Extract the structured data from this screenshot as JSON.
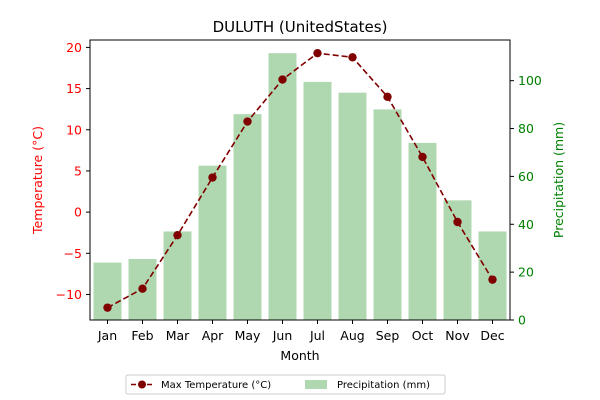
{
  "chart_data": {
    "type": "bar+line",
    "title": "DULUTH (UnitedStates)",
    "xlabel": "Month",
    "ylabel_left": "Temperature (°C)",
    "ylabel_right": "Precipitation (mm)",
    "categories": [
      "Jan",
      "Feb",
      "Mar",
      "Apr",
      "May",
      "Jun",
      "Jul",
      "Aug",
      "Sep",
      "Oct",
      "Nov",
      "Dec"
    ],
    "left_axis": {
      "ylim": [
        -13.1,
        20.9
      ],
      "ticks": [
        -10,
        -5,
        0,
        5,
        10,
        15,
        20
      ],
      "color": "#ff0000"
    },
    "right_axis": {
      "ylim": [
        0,
        117
      ],
      "ticks": [
        0,
        20,
        40,
        60,
        80,
        100
      ],
      "color": "#008000"
    },
    "series": [
      {
        "name": "Max Temperature (°C)",
        "type": "line",
        "axis": "left",
        "color": "#800000",
        "style": "dashed",
        "marker": "circle",
        "values": [
          -11.6,
          -9.3,
          -2.8,
          4.2,
          11.0,
          16.1,
          19.3,
          18.8,
          14.0,
          6.7,
          -1.2,
          -8.2
        ]
      },
      {
        "name": "Precipitation (mm)",
        "type": "bar",
        "axis": "right",
        "color": "#b0d8b0",
        "values": [
          24,
          25.5,
          37,
          64.5,
          86,
          111.5,
          99.5,
          95,
          88,
          74,
          50,
          37
        ]
      }
    ],
    "legend": {
      "position": "bottom-center",
      "columns": 2
    }
  }
}
